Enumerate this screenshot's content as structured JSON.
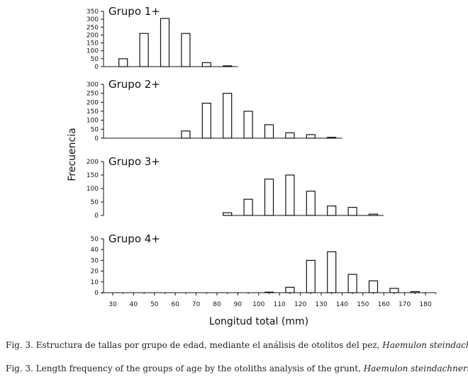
{
  "chart_data": [
    {
      "type": "bar",
      "title": "Grupo 1+",
      "x": [
        35,
        45,
        55,
        65,
        75,
        85
      ],
      "values": [
        50,
        210,
        305,
        210,
        25,
        5
      ],
      "yticks": [
        0,
        50,
        100,
        150,
        200,
        250,
        300,
        350
      ],
      "ylim": [
        0,
        350
      ],
      "x_extent": [
        25,
        90
      ]
    },
    {
      "type": "bar",
      "title": "Grupo 2+",
      "x": [
        65,
        75,
        85,
        95,
        105,
        115,
        125,
        135
      ],
      "values": [
        40,
        195,
        250,
        150,
        75,
        30,
        20,
        5
      ],
      "yticks": [
        0,
        50,
        100,
        150,
        200,
        250,
        300
      ],
      "ylim": [
        0,
        300
      ],
      "x_extent": [
        25,
        140
      ]
    },
    {
      "type": "bar",
      "title": "Grupo 3+",
      "x": [
        85,
        95,
        105,
        115,
        125,
        135,
        145,
        155
      ],
      "values": [
        10,
        60,
        135,
        150,
        90,
        35,
        30,
        5
      ],
      "yticks": [
        0,
        50,
        100,
        150,
        200
      ],
      "ylim": [
        0,
        200
      ],
      "x_extent": [
        85,
        160
      ]
    },
    {
      "type": "bar",
      "title": "Grupo 4+",
      "x": [
        105,
        115,
        125,
        135,
        145,
        155,
        165,
        175
      ],
      "values": [
        0.5,
        5,
        30,
        38,
        17,
        11,
        4,
        1
      ],
      "yticks": [
        0,
        10,
        20,
        30,
        40,
        50
      ],
      "ylim": [
        0,
        50
      ],
      "x_extent": [
        25,
        185
      ]
    }
  ],
  "shared": {
    "ylabel": "Frecuencia",
    "xlabel": "Longitud total (mm)",
    "xticks": [
      30,
      40,
      50,
      60,
      70,
      80,
      90,
      100,
      110,
      120,
      130,
      140,
      150,
      160,
      170,
      180
    ],
    "bar_color": "#ffffff",
    "line_color": "#111111"
  },
  "captions": {
    "es_prefix": "Fig. 3.  Estructura de tallas por grupo de edad, mediante el análisis de otolitos del pez, ",
    "es_species": "Haemulon steindachneri",
    "es_suffix": ".",
    "en_prefix": "Fig. 3. Length frequency of the groups of age by the otoliths analysis of the grunt, ",
    "en_species": "Haemulon steindachneri",
    "en_suffix": "."
  }
}
